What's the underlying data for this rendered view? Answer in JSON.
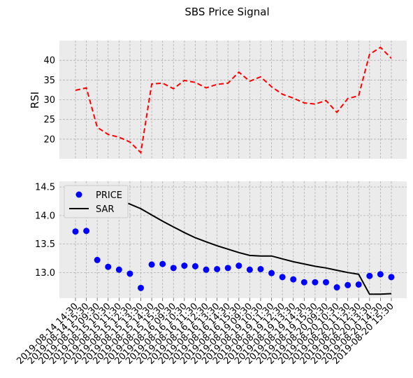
{
  "chart_data": {
    "title": "SBS Price Signal",
    "x": [
      "2019-08-14 14:30",
      "2019-08-14 15:30",
      "2019-08-15 09:30",
      "2019-08-15 10:30",
      "2019-08-15 11:30",
      "2019-08-15 12:30",
      "2019-08-15 13:30",
      "2019-08-15 14:30",
      "2019-08-15 15:30",
      "2019-08-16 09:30",
      "2019-08-16 10:30",
      "2019-08-16 11:30",
      "2019-08-16 12:30",
      "2019-08-16 13:30",
      "2019-08-16 14:30",
      "2019-08-16 15:30",
      "2019-08-19 09:30",
      "2019-08-19 10:30",
      "2019-08-19 11:30",
      "2019-08-19 12:30",
      "2019-08-19 13:30",
      "2019-08-19 14:30",
      "2019-08-19 15:30",
      "2019-08-20 09:30",
      "2019-08-20 10:30",
      "2019-08-20 11:30",
      "2019-08-20 12:30",
      "2019-08-20 13:30",
      "2019-08-20 14:30",
      "2019-08-20 15:30"
    ],
    "panels": [
      {
        "type": "line",
        "ylabel": "RSI",
        "ylim": [
          15,
          45
        ],
        "yticks": [
          20,
          25,
          30,
          35,
          40
        ],
        "grid": true,
        "series": [
          {
            "values": [
              32.4,
              33.0,
              23.0,
              21.2,
              20.5,
              19.3,
              16.6,
              34.0,
              34.2,
              32.8,
              34.9,
              34.4,
              33.0,
              33.9,
              34.2,
              37.0,
              34.7,
              35.8,
              33.3,
              31.4,
              30.4,
              29.2,
              28.9,
              29.8,
              26.8,
              30.3,
              31.0,
              41.5,
              43.3,
              40.5
            ],
            "color": "#ff0000",
            "dash": "dashed"
          }
        ]
      },
      {
        "type": "line",
        "ylabel": "",
        "ylim": [
          12.55,
          14.6
        ],
        "yticks": [
          13.0,
          13.5,
          14.0,
          14.5
        ],
        "grid": true,
        "legend_position": "top-left",
        "series": [
          {
            "name": "PRICE",
            "kind": "scatter",
            "color": "#0000ff",
            "values": [
              13.72,
              13.73,
              13.22,
              13.1,
              13.05,
              12.98,
              12.73,
              13.14,
              13.15,
              13.08,
              13.12,
              13.11,
              13.05,
              13.06,
              13.08,
              13.12,
              13.05,
              13.06,
              12.99,
              12.92,
              12.88,
              12.83,
              12.83,
              12.83,
              12.74,
              12.78,
              12.79,
              12.94,
              12.97,
              12.92
            ]
          },
          {
            "name": "SAR",
            "kind": "line",
            "color": "#000000",
            "values": [
              14.49,
              14.45,
              14.41,
              14.35,
              14.27,
              14.2,
              14.12,
              14.01,
              13.9,
              13.8,
              13.7,
              13.61,
              13.54,
              13.47,
              13.41,
              13.35,
              13.3,
              13.29,
              13.29,
              13.24,
              13.19,
              13.15,
              13.11,
              13.08,
              13.04,
              13.0,
              12.97,
              12.62,
              12.62,
              12.63
            ]
          }
        ]
      }
    ]
  }
}
